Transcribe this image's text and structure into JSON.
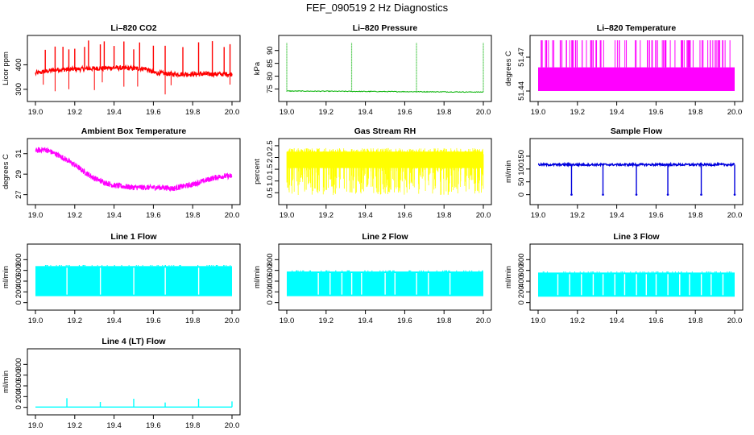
{
  "figure": {
    "title": "FEF_090519  2 Hz Diagnostics"
  },
  "chart_data": [
    {
      "id": "co2",
      "type": "line",
      "title": "Li–820 CO2",
      "ylabel": "Licor ppm",
      "color": "#ff0000",
      "xlim": [
        19.0,
        20.0
      ],
      "ylim": [
        270,
        500
      ],
      "xticks": [
        "19.0",
        "19.2",
        "19.4",
        "19.6",
        "19.8",
        "20.0"
      ],
      "yticks": [
        300,
        400
      ],
      "series": [
        {
          "name": "CO2",
          "baseline": [
            [
              19.0,
              365
            ],
            [
              19.1,
              380
            ],
            [
              19.2,
              382
            ],
            [
              19.3,
              385
            ],
            [
              19.4,
              388
            ],
            [
              19.5,
              385
            ],
            [
              19.56,
              385
            ],
            [
              19.6,
              368
            ],
            [
              19.7,
              362
            ],
            [
              19.8,
              362
            ],
            [
              19.9,
              362
            ],
            [
              19.99,
              362
            ]
          ],
          "spikes_up": [
            19.05,
            19.1,
            19.14,
            19.17,
            19.2,
            19.25,
            19.27,
            19.33,
            19.35,
            19.4,
            19.45,
            19.5,
            19.53,
            19.6,
            19.66,
            19.75,
            19.83,
            19.9,
            19.96,
            19.99
          ],
          "spikes_down": [
            19.04,
            19.1,
            19.17,
            19.3,
            19.34,
            19.45,
            19.52,
            19.66,
            19.69,
            19.99
          ]
        }
      ]
    },
    {
      "id": "pressure",
      "type": "line",
      "title": "Li–820 Pressure",
      "ylabel": "kPa",
      "color": "#00b000",
      "xlim": [
        19.0,
        20.0
      ],
      "ylim": [
        72,
        94
      ],
      "xticks": [
        "19.0",
        "19.2",
        "19.4",
        "19.6",
        "19.8",
        "20.0"
      ],
      "yticks": [
        75,
        80,
        85,
        90
      ],
      "series": [
        {
          "name": "Pressure",
          "baseline": [
            [
              19.0,
              74.2
            ],
            [
              20.0,
              73.8
            ]
          ],
          "spikes_up": [
            19.0,
            19.33,
            19.66,
            20.0
          ]
        }
      ]
    },
    {
      "id": "licor-temp",
      "type": "line",
      "title": "Li–820 Temperature",
      "ylabel": "degrees C",
      "color": "#ff00ff",
      "xlim": [
        19.0,
        20.0
      ],
      "ylim": [
        51.435,
        51.485
      ],
      "xticks": [
        "19.0",
        "19.2",
        "19.4",
        "19.6",
        "19.8",
        "20.0"
      ],
      "yticks": [
        "51.44",
        "51.47"
      ],
      "series": [
        {
          "name": "Temperature",
          "levels": [
            51.44,
            51.461,
            51.48
          ],
          "spike_density": "high"
        }
      ]
    },
    {
      "id": "ambient-temp",
      "type": "line",
      "title": "Ambient Box Temperature",
      "ylabel": "degrees C",
      "color": "#ff00ff",
      "xlim": [
        19.0,
        20.0
      ],
      "ylim": [
        26.5,
        32
      ],
      "xticks": [
        "19.0",
        "19.2",
        "19.4",
        "19.6",
        "19.8",
        "20.0"
      ],
      "yticks": [
        27,
        29,
        31
      ],
      "series": [
        {
          "name": "Ambient",
          "x": [
            19.0,
            19.05,
            19.1,
            19.15,
            19.2,
            19.25,
            19.3,
            19.35,
            19.4,
            19.45,
            19.5,
            19.55,
            19.6,
            19.65,
            19.7,
            19.75,
            19.8,
            19.85,
            19.9,
            19.95,
            20.0
          ],
          "y": [
            31.3,
            31.4,
            31.0,
            30.5,
            29.9,
            29.2,
            28.6,
            28.2,
            27.9,
            27.8,
            27.7,
            27.7,
            27.7,
            27.7,
            27.6,
            27.8,
            28.0,
            28.3,
            28.6,
            28.8,
            28.8
          ]
        }
      ]
    },
    {
      "id": "rh",
      "type": "line",
      "title": "Gas Stream RH",
      "ylabel": "percent",
      "color": "#ffff00",
      "xlim": [
        19.0,
        20.0
      ],
      "ylim": [
        0.2,
        2.6
      ],
      "xticks": [
        "19.0",
        "19.2",
        "19.4",
        "19.6",
        "19.8",
        "20.0"
      ],
      "yticks": [
        "0.5",
        "1.0",
        "1.5",
        "2.0",
        "2.5"
      ],
      "series": [
        {
          "name": "RH",
          "upper": 2.35,
          "lower": 0.4
        }
      ]
    },
    {
      "id": "sample-flow",
      "type": "line",
      "title": "Sample Flow",
      "ylabel": "ml/min",
      "color": "#0000dd",
      "xlim": [
        19.0,
        20.0
      ],
      "ylim": [
        -20,
        200
      ],
      "xticks": [
        "19.0",
        "19.2",
        "19.4",
        "19.6",
        "19.8",
        "20.0"
      ],
      "yticks": [
        0,
        50,
        100,
        150
      ],
      "series": [
        {
          "name": "Sample",
          "baseline": 117,
          "dips": [
            19.17,
            19.33,
            19.5,
            19.66,
            19.83,
            20.0
          ],
          "dip_to": 0
        }
      ]
    },
    {
      "id": "line1",
      "type": "line",
      "title": "Line 1 Flow",
      "ylabel": "ml/min",
      "color": "#00ffff",
      "xlim": [
        19.0,
        20.0
      ],
      "ylim": [
        -50,
        1000
      ],
      "xticks": [
        "19.0",
        "19.2",
        "19.4",
        "19.6",
        "19.8",
        "20.0"
      ],
      "yticks": [
        0,
        200,
        400,
        600,
        800
      ],
      "series": [
        {
          "name": "Line 1",
          "upper": 680,
          "lower": 120,
          "gaps": [
            19.16,
            19.33,
            19.5,
            19.66,
            19.83
          ]
        }
      ]
    },
    {
      "id": "line2",
      "type": "line",
      "title": "Line 2 Flow",
      "ylabel": "ml/min",
      "color": "#00ffff",
      "xlim": [
        19.0,
        20.0
      ],
      "ylim": [
        -50,
        1000
      ],
      "xticks": [
        "19.0",
        "19.2",
        "19.4",
        "19.6",
        "19.8",
        "20.0"
      ],
      "yticks": [
        0,
        200,
        400,
        600,
        800
      ],
      "series": [
        {
          "name": "Line 2",
          "upper": 580,
          "lower": 120,
          "gaps": [
            19.16,
            19.22,
            19.28,
            19.33,
            19.38,
            19.5,
            19.55,
            19.66,
            19.72,
            19.83
          ]
        }
      ]
    },
    {
      "id": "line3",
      "type": "line",
      "title": "Line 3 Flow",
      "ylabel": "ml/min",
      "color": "#00ffff",
      "xlim": [
        19.0,
        20.0
      ],
      "ylim": [
        -50,
        1000
      ],
      "xticks": [
        "19.0",
        "19.2",
        "19.4",
        "19.6",
        "19.8",
        "20.0"
      ],
      "yticks": [
        0,
        200,
        400,
        600,
        800
      ],
      "series": [
        {
          "name": "Line 3",
          "upper": 560,
          "lower": 110,
          "gaps": [
            19.1,
            19.16,
            19.22,
            19.28,
            19.33,
            19.39,
            19.44,
            19.5,
            19.55,
            19.6,
            19.66,
            19.72,
            19.77,
            19.83,
            19.88,
            19.94
          ]
        }
      ]
    },
    {
      "id": "line4",
      "type": "line",
      "title": "Line 4 (LT) Flow",
      "ylabel": "ml/min",
      "color": "#00ffff",
      "xlim": [
        19.0,
        20.0
      ],
      "ylim": [
        -50,
        1000
      ],
      "xticks": [
        "19.0",
        "19.2",
        "19.4",
        "19.6",
        "19.8",
        "20.0"
      ],
      "yticks": [
        0,
        200,
        400,
        600,
        800
      ],
      "series": [
        {
          "name": "Line 4",
          "baseline": 5,
          "spikes": [
            [
              19.16,
              170
            ],
            [
              19.33,
              100
            ],
            [
              19.5,
              160
            ],
            [
              19.66,
              90
            ],
            [
              19.83,
              160
            ],
            [
              20.0,
              110
            ]
          ]
        }
      ]
    }
  ]
}
